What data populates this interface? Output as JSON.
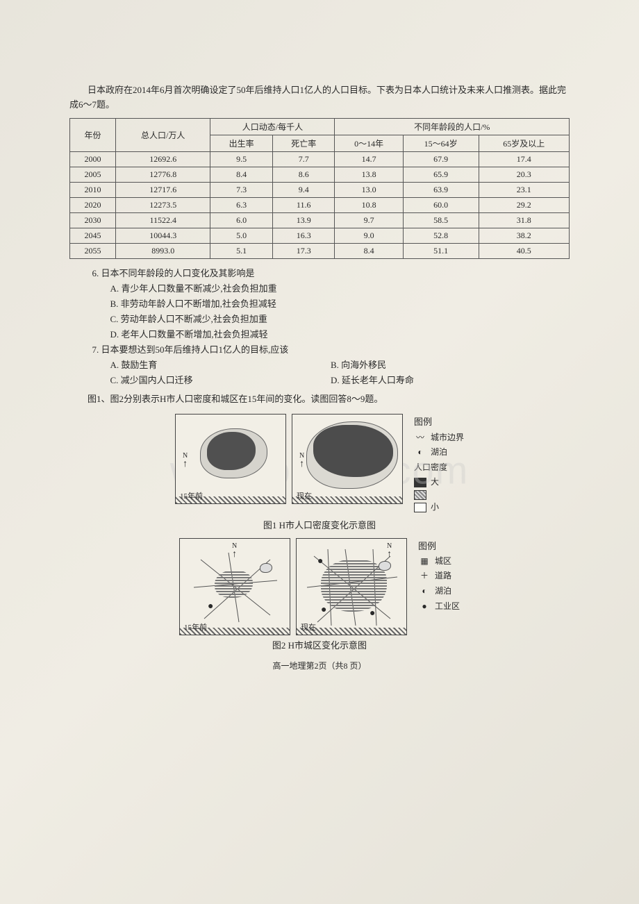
{
  "intro": "日本政府在2014年6月首次明确设定了50年后维持人口1亿人的人口目标。下表为日本人口统计及未来人口推测表。据此完成6～7题。",
  "table": {
    "head_year": "年份",
    "head_total": "总人口/万人",
    "head_dynamics": "人口动态/每千人",
    "head_birth": "出生率",
    "head_death": "死亡率",
    "head_agegroup": "不同年龄段的人口/%",
    "head_0_14": "0～14年",
    "head_15_64": "15～64岁",
    "head_65up": "65岁及以上",
    "rows": [
      {
        "year": "2000",
        "total": "12692.6",
        "birth": "9.5",
        "death": "7.7",
        "a": "14.7",
        "b": "67.9",
        "c": "17.4"
      },
      {
        "year": "2005",
        "total": "12776.8",
        "birth": "8.4",
        "death": "8.6",
        "a": "13.8",
        "b": "65.9",
        "c": "20.3"
      },
      {
        "year": "2010",
        "total": "12717.6",
        "birth": "7.3",
        "death": "9.4",
        "a": "13.0",
        "b": "63.9",
        "c": "23.1"
      },
      {
        "year": "2020",
        "total": "12273.5",
        "birth": "6.3",
        "death": "11.6",
        "a": "10.8",
        "b": "60.0",
        "c": "29.2"
      },
      {
        "year": "2030",
        "total": "11522.4",
        "birth": "6.0",
        "death": "13.9",
        "a": "9.7",
        "b": "58.5",
        "c": "31.8"
      },
      {
        "year": "2045",
        "total": "10044.3",
        "birth": "5.0",
        "death": "16.3",
        "a": "9.0",
        "b": "52.8",
        "c": "38.2"
      },
      {
        "year": "2055",
        "total": "8993.0",
        "birth": "5.1",
        "death": "17.3",
        "a": "8.4",
        "b": "51.1",
        "c": "40.5"
      }
    ]
  },
  "q6": {
    "title": "6. 日本不同年龄段的人口变化及其影响是",
    "A": "A. 青少年人口数量不断减少,社会负担加重",
    "B": "B. 非劳动年龄人口不断增加,社会负担减轻",
    "C": "C. 劳动年龄人口不断减少,社会负担加重",
    "D": "D. 老年人口数量不断增加,社会负担减轻"
  },
  "q7": {
    "title": "7. 日本要想达到50年后维持人口1亿人的目标,应该",
    "A": "A. 鼓励生育",
    "B": "B. 向海外移民",
    "C": "C. 减少国内人口迁移",
    "D": "D. 延长老年人口寿命"
  },
  "context2": "图1、图2分别表示H市人口密度和城区在15年间的变化。读图回答8～9题。",
  "fig1": {
    "left_label": "15年前",
    "right_label": "现在",
    "caption": "图1  H市人口密度变化示意图",
    "legend_title": "图例",
    "legend_boundary": "城市边界",
    "legend_lake": "湖泊",
    "legend_density": "人口密度",
    "legend_high": "大",
    "legend_low": "小",
    "north": "N"
  },
  "fig2": {
    "left_label": "15年前",
    "right_label": "现在",
    "caption": "图2  H市城区变化示意图",
    "legend_title": "图例",
    "legend_urban": "城区",
    "legend_road": "道路",
    "legend_lake": "湖泊",
    "legend_industry": "工业区",
    "north": "N"
  },
  "footer": "高一地理第2页（共8 页）",
  "watermark": "www.bdocx.com"
}
